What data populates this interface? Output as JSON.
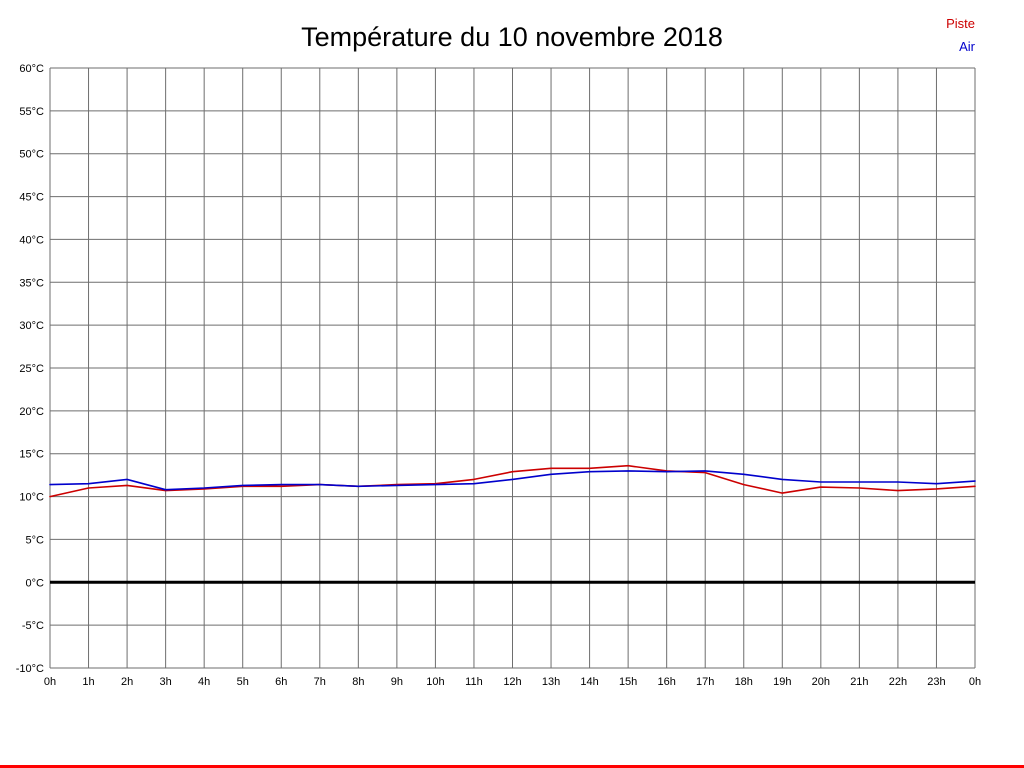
{
  "title": "Température du 10 novembre 2018",
  "legend": {
    "piste_label": "Piste",
    "air_label": "Air"
  },
  "colors": {
    "piste": "#cc0000",
    "air": "#0000cc",
    "grid": "#6e6e6e",
    "zero_line": "#000000",
    "bottom_border": "#ff0000"
  },
  "chart_data": {
    "type": "line",
    "title": "Température du 10 novembre 2018",
    "x_tick_labels": [
      "0h",
      "1h",
      "2h",
      "3h",
      "4h",
      "5h",
      "6h",
      "7h",
      "8h",
      "9h",
      "10h",
      "11h",
      "12h",
      "13h",
      "14h",
      "15h",
      "16h",
      "17h",
      "18h",
      "19h",
      "20h",
      "21h",
      "22h",
      "23h",
      "0h"
    ],
    "y_tick_labels": [
      "60°C",
      "55°C",
      "50°C",
      "45°C",
      "40°C",
      "35°C",
      "30°C",
      "25°C",
      "20°C",
      "15°C",
      "10°C",
      "5°C",
      "0°C",
      "-5°C",
      "-10°C"
    ],
    "ylim": [
      -10,
      60
    ],
    "y_step": 5,
    "grid": true,
    "legend_position": "top-right",
    "zero_line_emphasized": true,
    "series": [
      {
        "name": "Piste",
        "color": "#cc0000",
        "values": [
          10.0,
          11.0,
          11.3,
          10.7,
          10.9,
          11.2,
          11.2,
          11.4,
          11.2,
          11.4,
          11.5,
          12.0,
          12.9,
          13.3,
          13.3,
          13.6,
          13.0,
          12.8,
          11.4,
          10.4,
          11.1,
          11.0,
          10.7,
          10.9,
          11.2
        ]
      },
      {
        "name": "Air",
        "color": "#0000cc",
        "values": [
          11.4,
          11.5,
          12.0,
          10.8,
          11.0,
          11.3,
          11.4,
          11.4,
          11.2,
          11.3,
          11.4,
          11.5,
          12.0,
          12.6,
          12.9,
          13.0,
          12.9,
          13.0,
          12.6,
          12.0,
          11.7,
          11.7,
          11.7,
          11.5,
          11.8
        ]
      }
    ]
  }
}
